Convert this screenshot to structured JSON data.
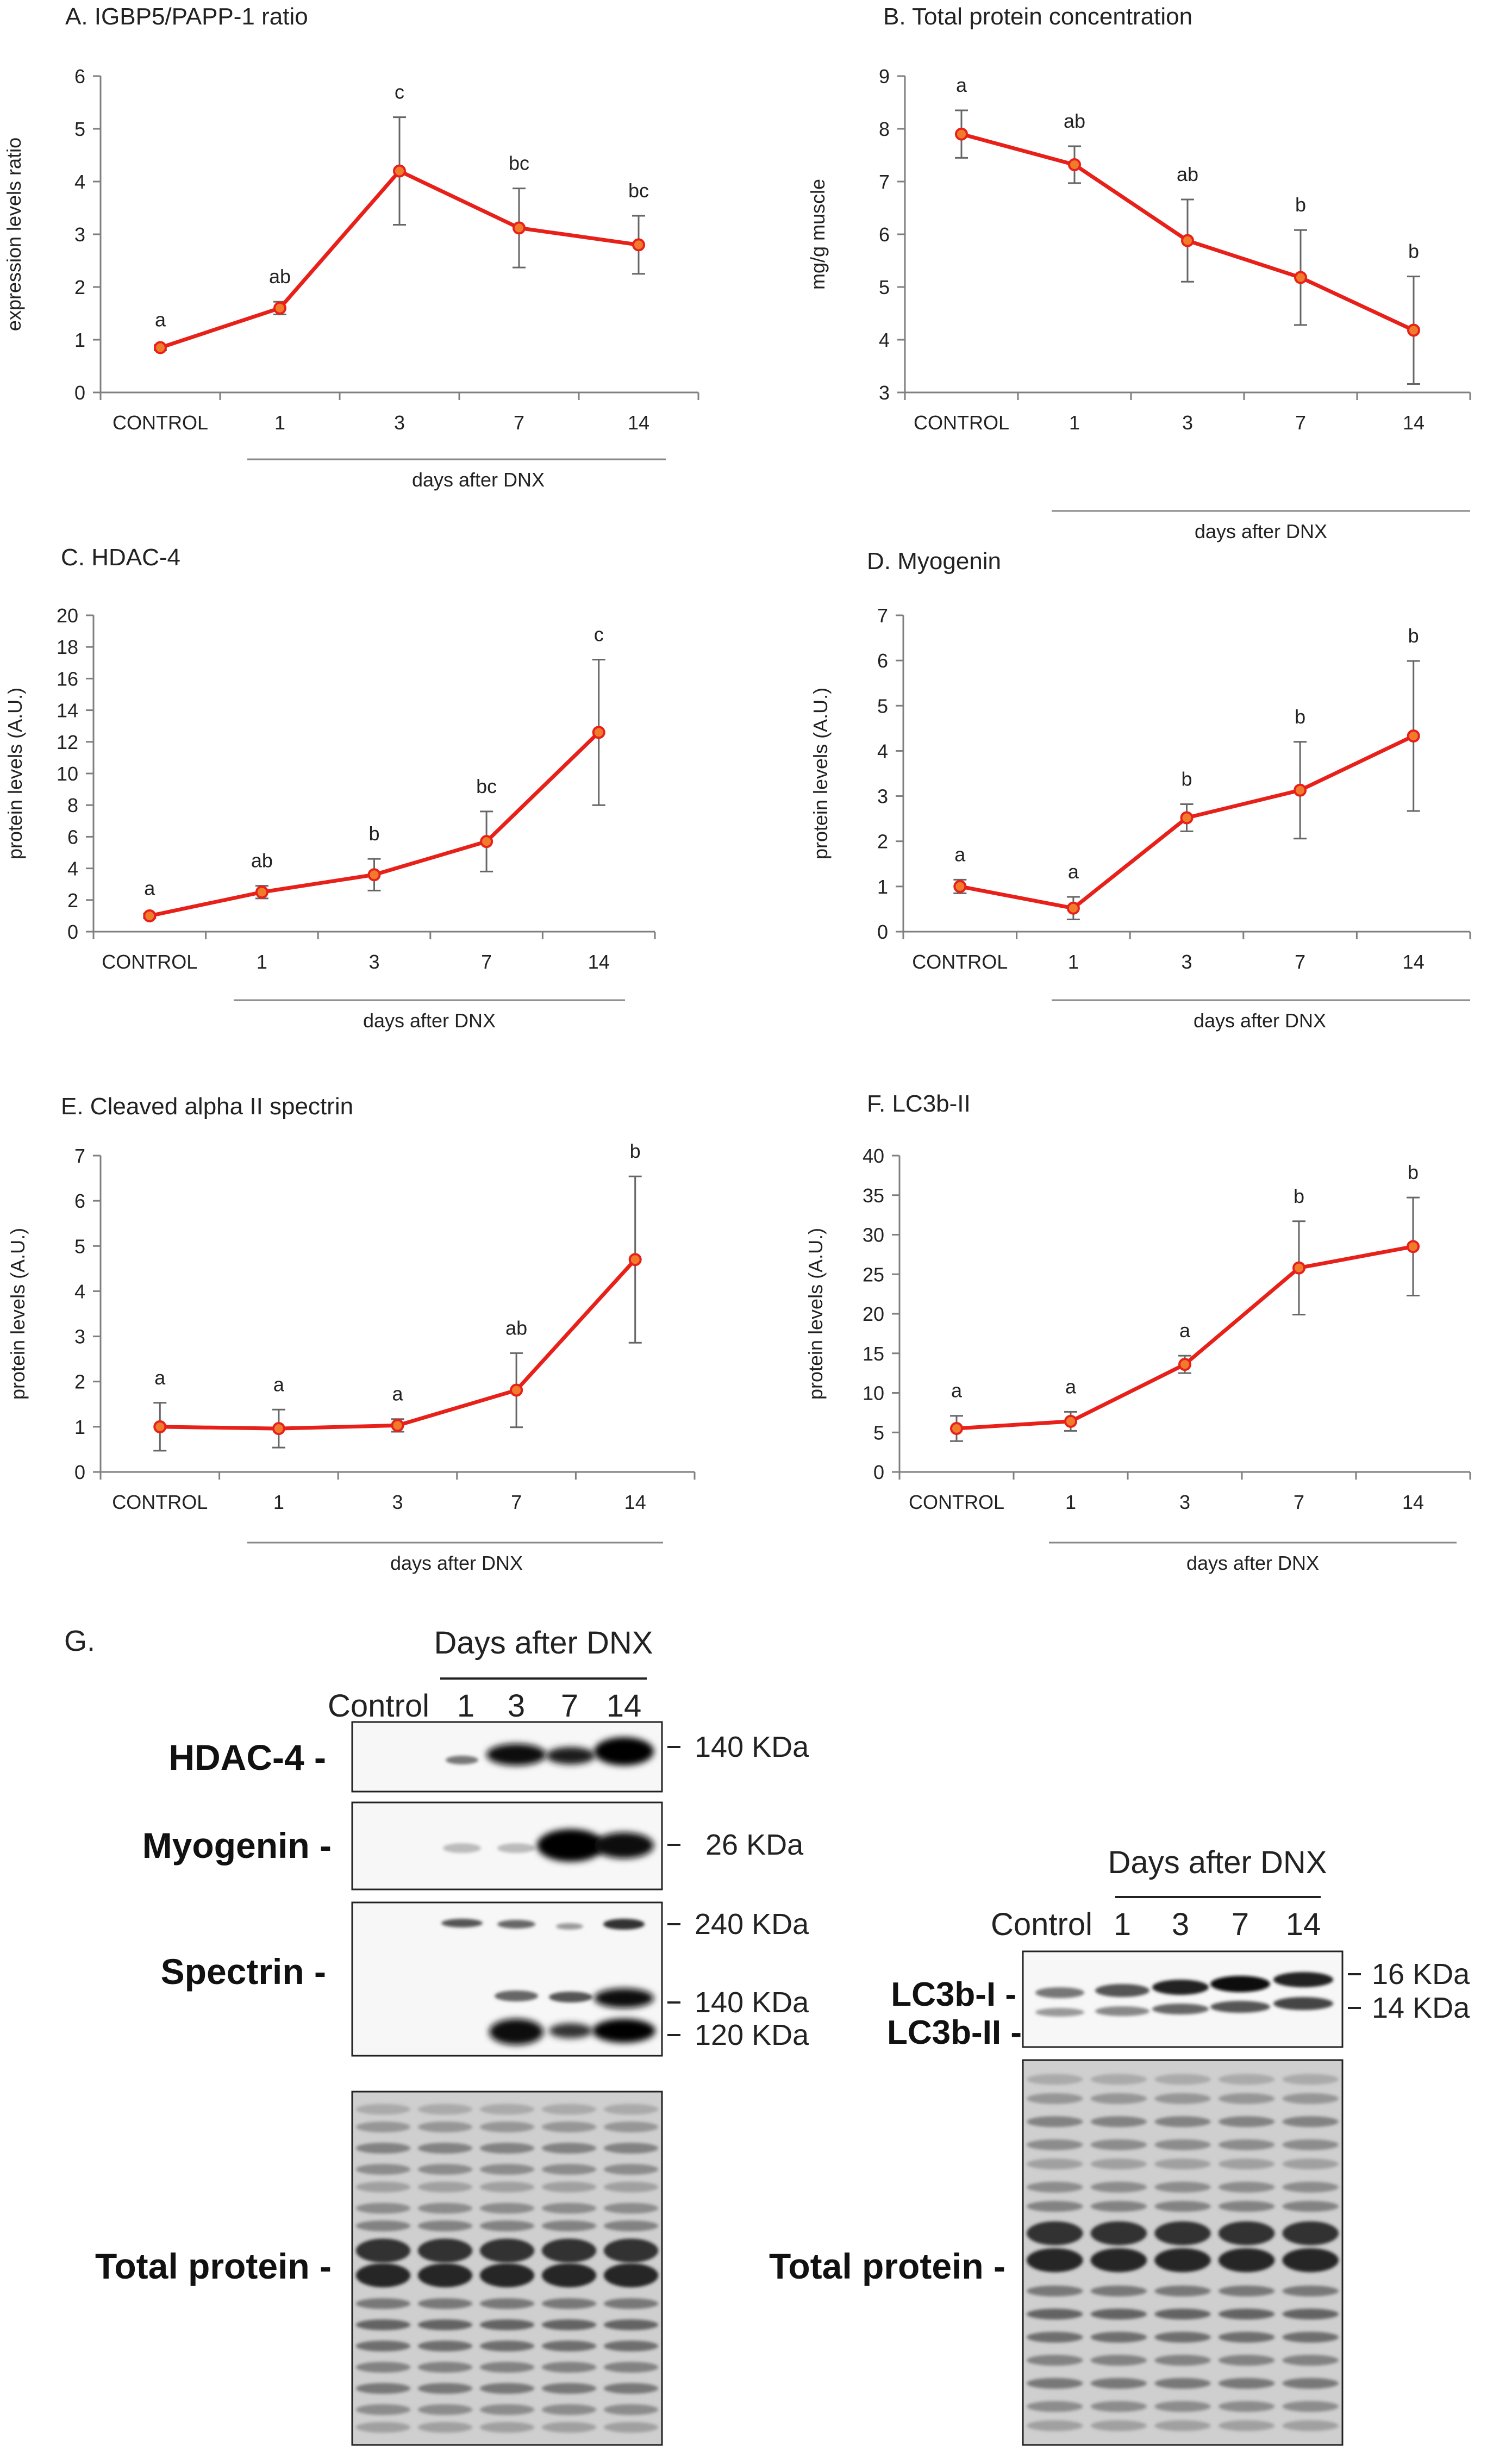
{
  "chart_data": [
    {
      "id": "A",
      "type": "line",
      "title": "A. IGBP5/PAPP-1 ratio",
      "ylabel": "expression levels ratio",
      "xlabel": "days after DNX",
      "categories": [
        "CONTROL",
        "1",
        "3",
        "7",
        "14"
      ],
      "ylim": [
        0,
        6
      ],
      "yticks": [
        0,
        1,
        2,
        3,
        4,
        5,
        6
      ],
      "values": [
        0.85,
        1.6,
        4.2,
        3.12,
        2.8
      ],
      "errors": [
        0.05,
        0.12,
        1.02,
        0.75,
        0.55
      ],
      "letters": [
        "a",
        "ab",
        "c",
        "bc",
        "bc"
      ]
    },
    {
      "id": "B",
      "type": "line",
      "title": "B. Total protein concentration",
      "ylabel": "mg/g muscle",
      "xlabel": "days after DNX",
      "categories": [
        "CONTROL",
        "1",
        "3",
        "7",
        "14"
      ],
      "ylim": [
        3,
        9
      ],
      "yticks": [
        3,
        4,
        5,
        6,
        7,
        8,
        9
      ],
      "values": [
        7.9,
        7.32,
        5.88,
        5.18,
        4.18
      ],
      "errors": [
        0.45,
        0.35,
        0.78,
        0.9,
        1.02
      ],
      "letters": [
        "a",
        "ab",
        "ab",
        "b",
        "b"
      ]
    },
    {
      "id": "C",
      "type": "line",
      "title": "C. HDAC-4",
      "ylabel": "protein levels (A.U.)",
      "xlabel": "days after DNX",
      "categories": [
        "CONTROL",
        "1",
        "3",
        "7",
        "14"
      ],
      "ylim": [
        0,
        20
      ],
      "yticks": [
        0,
        2,
        4,
        6,
        8,
        10,
        12,
        14,
        16,
        18,
        20
      ],
      "values": [
        1.0,
        2.5,
        3.6,
        5.7,
        12.6
      ],
      "errors": [
        0.15,
        0.4,
        1.0,
        1.9,
        4.6
      ],
      "letters": [
        "a",
        "ab",
        "b",
        "bc",
        "c"
      ]
    },
    {
      "id": "D",
      "type": "line",
      "title": "D. Myogenin",
      "ylabel": "protein levels (A.U.)",
      "xlabel": "days after DNX",
      "categories": [
        "CONTROL",
        "1",
        "3",
        "7",
        "14"
      ],
      "ylim": [
        0,
        7
      ],
      "yticks": [
        0,
        1,
        2,
        3,
        4,
        5,
        6,
        7
      ],
      "values": [
        1.0,
        0.52,
        2.52,
        3.13,
        4.33
      ],
      "errors": [
        0.15,
        0.25,
        0.3,
        1.07,
        1.66
      ],
      "letters": [
        "a",
        "a",
        "b",
        "b",
        "b"
      ]
    },
    {
      "id": "E",
      "type": "line",
      "title": "E. Cleaved alpha II spectrin",
      "ylabel": "protein levels (A.U.)",
      "xlabel": "days after DNX",
      "categories": [
        "CONTROL",
        "1",
        "3",
        "7",
        "14"
      ],
      "ylim": [
        0,
        7
      ],
      "yticks": [
        0,
        1,
        2,
        3,
        4,
        5,
        6,
        7
      ],
      "values": [
        1.0,
        0.96,
        1.03,
        1.81,
        4.7
      ],
      "errors": [
        0.53,
        0.42,
        0.14,
        0.82,
        1.84
      ],
      "letters": [
        "a",
        "a",
        "a",
        "ab",
        "b"
      ]
    },
    {
      "id": "F",
      "type": "line",
      "title": "F. LC3b-II",
      "ylabel": "protein levels (A.U.)",
      "xlabel": "days after DNX",
      "categories": [
        "CONTROL",
        "1",
        "3",
        "7",
        "14"
      ],
      "ylim": [
        0,
        40
      ],
      "yticks": [
        0,
        5,
        10,
        15,
        20,
        25,
        30,
        35,
        40
      ],
      "values": [
        5.5,
        6.4,
        13.6,
        25.8,
        28.5
      ],
      "errors": [
        1.6,
        1.2,
        1.1,
        5.9,
        6.2
      ],
      "letters": [
        "a",
        "a",
        "a",
        "b",
        "b"
      ]
    }
  ],
  "blot_left": {
    "panel_label": "G.",
    "header": "Days after DNX",
    "lane_labels": [
      "Control",
      "1",
      "3",
      "7",
      "14"
    ],
    "rows": [
      {
        "label": "HDAC-4 -",
        "sizes": [
          "140 KDa"
        ],
        "intensity": [
          0.02,
          0.12,
          0.8,
          0.7,
          0.95
        ]
      },
      {
        "label": "Myogenin -",
        "sizes": [
          "26 KDa"
        ],
        "intensity": [
          0.03,
          0.08,
          0.1,
          0.95,
          0.9
        ]
      },
      {
        "label": "Spectrin -",
        "sizes": [
          "240 KDa",
          "140 KDa",
          "120 KDa"
        ],
        "intensity": [
          0.05,
          0.25,
          0.5,
          0.4,
          0.9
        ]
      },
      {
        "label": "Total protein -",
        "sizes": [],
        "intensity": [
          0.6,
          0.6,
          0.6,
          0.6,
          0.6
        ]
      }
    ]
  },
  "blot_right": {
    "header": "Days after DNX",
    "lane_labels": [
      "Control",
      "1",
      "3",
      "7",
      "14"
    ],
    "rows": [
      {
        "label": "LC3b-I -",
        "sizes": [
          "16 KDa"
        ],
        "intensity": [
          0.35,
          0.55,
          0.8,
          0.85,
          0.75
        ]
      },
      {
        "label": "LC3b-II -",
        "sizes": [
          "14 KDa"
        ],
        "intensity": [
          0.3,
          0.4,
          0.5,
          0.55,
          0.6
        ]
      },
      {
        "label": "Total protein -",
        "sizes": [],
        "intensity": [
          0.6,
          0.6,
          0.6,
          0.6,
          0.6
        ]
      }
    ]
  },
  "colors": {
    "line": "#e8201a",
    "marker_fill": "#f07b2a",
    "axis": "#7f7f7f",
    "text": "#222222"
  }
}
